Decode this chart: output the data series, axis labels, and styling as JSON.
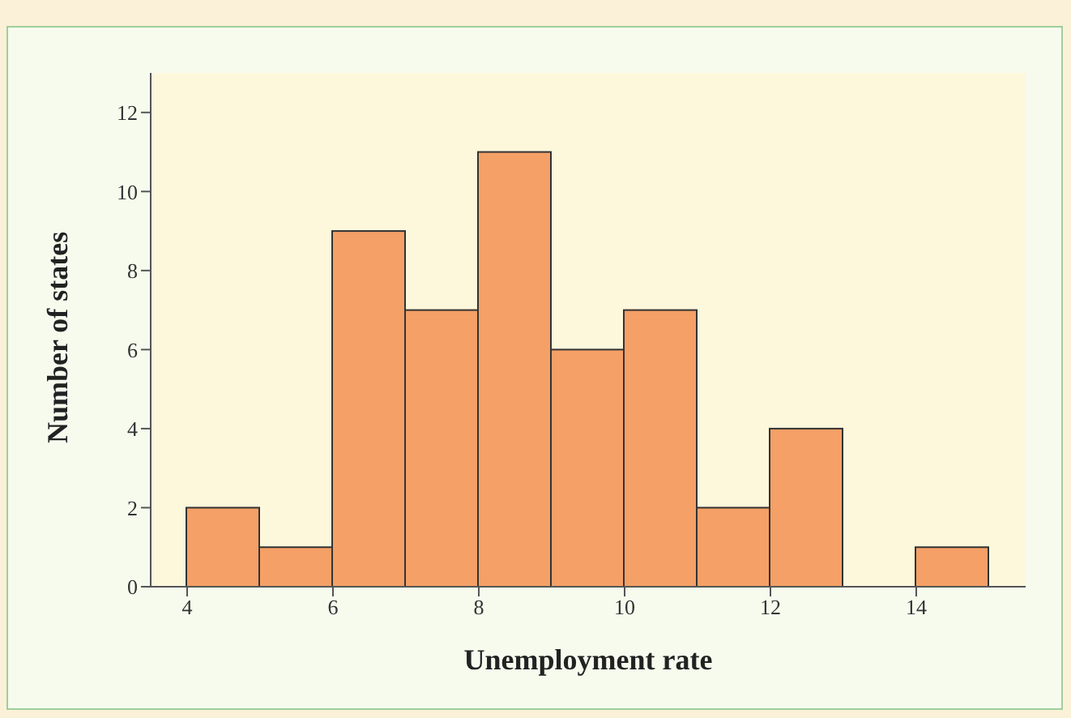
{
  "chart_data": {
    "type": "histogram",
    "xlabel": "Unemployment rate",
    "ylabel": "Number of states",
    "bins": [
      4,
      5,
      6,
      7,
      8,
      9,
      10,
      11,
      12,
      13,
      14,
      15
    ],
    "values": [
      2,
      1,
      9,
      7,
      11,
      6,
      7,
      2,
      4,
      0,
      1
    ],
    "color": "#f4a066",
    "xlim": [
      3.5,
      15.5
    ],
    "xticks": [
      4,
      6,
      8,
      10,
      12,
      14
    ],
    "ylim": [
      0,
      13
    ],
    "yticks": [
      0,
      2,
      4,
      6,
      8,
      10,
      12
    ],
    "grid": false
  }
}
